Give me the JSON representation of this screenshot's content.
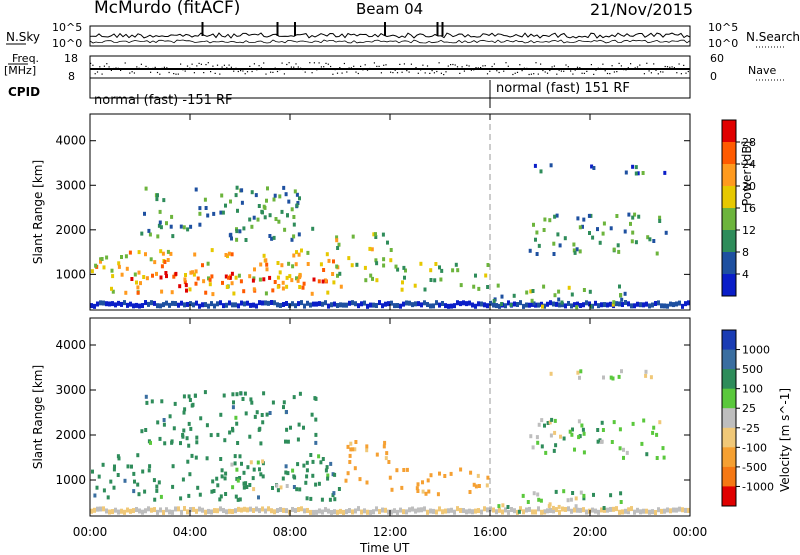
{
  "header": {
    "station": "McMurdo (fitACF)",
    "beam": "Beam 04",
    "date": "21/Nov/2015"
  },
  "status_panels": {
    "noise_sky_label": "N.Sky",
    "noise_search_label": "N.Search",
    "noise_ticks_left": [
      "10^5",
      "10^0"
    ],
    "noise_ticks_right": [
      "10^5",
      "10^0"
    ],
    "freq_label_top": "Freq.",
    "freq_label_unit": "[MHz]",
    "freq_ticks": [
      "18",
      "8"
    ],
    "nave_label": "Nave",
    "nave_ticks": [
      "60",
      "0"
    ],
    "cpid_label": "CPID",
    "cpid_segments": [
      {
        "label": "normal (fast) -151 RF",
        "start_hour": 0,
        "end_hour": 16
      },
      {
        "label": "normal (fast) 151 RF",
        "start_hour": 16,
        "end_hour": 24
      }
    ]
  },
  "colorbars": {
    "power": {
      "title": "Power [dB]",
      "ticks": [
        "28",
        "24",
        "20",
        "16",
        "12",
        "8",
        "4"
      ],
      "colors": [
        "#e00000",
        "#ff5a00",
        "#ff9a1e",
        "#e6c800",
        "#6cb43c",
        "#2e8c5a",
        "#1e50a0",
        "#0a1ec8"
      ]
    },
    "velocity": {
      "title": "Velocity [m s^-1]",
      "ticks": [
        "1000",
        "500",
        "100",
        "25",
        "-25",
        "-100",
        "-500",
        "-1000"
      ],
      "colors": [
        "#1a3cb4",
        "#3a6ea0",
        "#2e8c5a",
        "#5ac83c",
        "#bebebe",
        "#f0c878",
        "#f5a032",
        "#f57814",
        "#e00000"
      ]
    }
  },
  "chart_data": [
    {
      "type": "heatmap",
      "title": "Power",
      "xlabel": "Time UT",
      "ylabel": "Slant Range [km]",
      "x_ticks": [
        "00:00",
        "04:00",
        "08:00",
        "12:00",
        "16:00",
        "20:00",
        "00:00"
      ],
      "y_ticks": [
        "1000",
        "2000",
        "3000",
        "4000"
      ],
      "xlim": [
        0,
        24
      ],
      "ylim": [
        200,
        4600
      ],
      "scale_label": "Power [dB]",
      "scale_range": [
        0,
        30
      ],
      "features": [
        {
          "t0": 0.0,
          "t1": 10.0,
          "r0": 600,
          "r1": 1600,
          "value": 20
        },
        {
          "t0": 1.5,
          "t1": 6.5,
          "r0": 650,
          "r1": 1100,
          "value": 26
        },
        {
          "t0": 6.5,
          "t1": 9.5,
          "r0": 700,
          "r1": 1300,
          "value": 24
        },
        {
          "t0": 9.5,
          "t1": 12.0,
          "r0": 900,
          "r1": 2000,
          "value": 16
        },
        {
          "t0": 12.0,
          "t1": 16.0,
          "r0": 700,
          "r1": 1300,
          "value": 14
        },
        {
          "t0": 16.0,
          "t1": 21.5,
          "r0": 300,
          "r1": 800,
          "value": 12
        },
        {
          "t0": 2.0,
          "t1": 9.0,
          "r0": 1800,
          "r1": 3000,
          "value": 10
        },
        {
          "t0": 17.5,
          "t1": 23.0,
          "r0": 1500,
          "r1": 2400,
          "value": 10
        },
        {
          "t0": 17.5,
          "t1": 23.0,
          "r0": 3300,
          "r1": 3500,
          "value": 8
        }
      ]
    },
    {
      "type": "heatmap",
      "title": "Velocity",
      "xlabel": "Time UT",
      "ylabel": "Slant Range [km]",
      "x_ticks": [
        "00:00",
        "04:00",
        "08:00",
        "12:00",
        "16:00",
        "20:00",
        "00:00"
      ],
      "y_ticks": [
        "1000",
        "2000",
        "3000",
        "4000"
      ],
      "xlim": [
        0,
        24
      ],
      "ylim": [
        200,
        4600
      ],
      "scale_label": "Velocity [m s^-1]",
      "scale_range": [
        -1000,
        1000
      ],
      "features": [
        {
          "t0": 0.0,
          "t1": 10.0,
          "r0": 600,
          "r1": 1600,
          "value": 300
        },
        {
          "t0": 5.5,
          "t1": 8.5,
          "r0": 800,
          "r1": 1500,
          "value": 80
        },
        {
          "t0": 10.0,
          "t1": 12.0,
          "r0": 900,
          "r1": 1900,
          "value": -200
        },
        {
          "t0": 12.0,
          "t1": 16.0,
          "r0": 700,
          "r1": 1300,
          "value": -150
        },
        {
          "t0": 16.0,
          "t1": 21.5,
          "r0": 300,
          "r1": 800,
          "value": 60
        },
        {
          "t0": 2.0,
          "t1": 9.0,
          "r0": 1800,
          "r1": 3000,
          "value": 300
        },
        {
          "t0": 17.5,
          "t1": 23.0,
          "r0": 1500,
          "r1": 2400,
          "value": 60
        },
        {
          "t0": 17.5,
          "t1": 23.0,
          "r0": 3300,
          "r1": 3500,
          "value": 0
        }
      ]
    }
  ]
}
